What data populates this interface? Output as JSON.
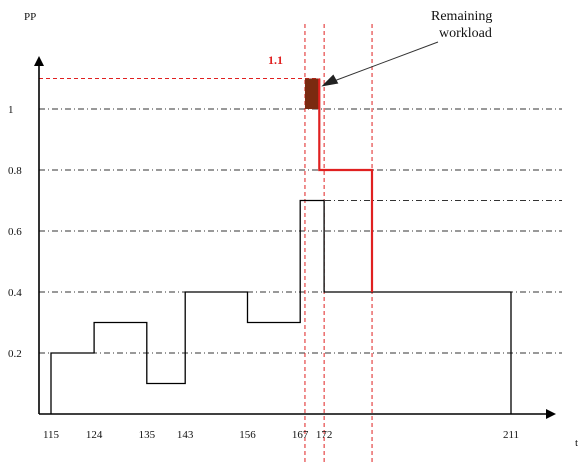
{
  "chart_data": {
    "type": "line",
    "ylabel": "PP",
    "xlabel": "t",
    "ylim": [
      0,
      1.2
    ],
    "y_ticks": [
      {
        "value": 0.2,
        "label": "0.2"
      },
      {
        "value": 0.4,
        "label": "0.4"
      },
      {
        "value": 0.6,
        "label": "0.6"
      },
      {
        "value": 0.8,
        "label": "0.8"
      },
      {
        "value": 1.0,
        "label": "1"
      }
    ],
    "x_ticks": [
      {
        "value": 115,
        "label": "115"
      },
      {
        "value": 124,
        "label": "124"
      },
      {
        "value": 135,
        "label": "135"
      },
      {
        "value": 143,
        "label": "143"
      },
      {
        "value": 156,
        "label": "156"
      },
      {
        "value": 167,
        "label": "167"
      },
      {
        "value": 172,
        "label": "172"
      },
      {
        "value": 211,
        "label": "211"
      }
    ],
    "y_gridlines": [
      0.2,
      0.4,
      0.6,
      0.7,
      0.8,
      1.0
    ],
    "series": [
      {
        "color": "#000000",
        "step_points": [
          [
            115,
            0.0
          ],
          [
            115,
            0.2
          ],
          [
            124,
            0.2
          ],
          [
            124,
            0.3
          ],
          [
            135,
            0.3
          ],
          [
            135,
            0.1
          ],
          [
            143,
            0.1
          ],
          [
            143,
            0.4
          ],
          [
            156,
            0.4
          ],
          [
            156,
            0.3
          ],
          [
            167,
            0.3
          ],
          [
            167,
            0.7
          ],
          [
            172,
            0.7
          ],
          [
            172,
            0.4
          ],
          [
            211,
            0.4
          ],
          [
            211,
            0.0
          ]
        ]
      },
      {
        "color": "#e02020",
        "step_points": [
          [
            171,
            1.1
          ],
          [
            171,
            0.8
          ],
          [
            182,
            0.8
          ],
          [
            182,
            0.4
          ]
        ]
      }
    ],
    "reference_lines": {
      "horizontal": {
        "value": 1.1,
        "label": "1.1",
        "x_from": 115,
        "x_to": 171,
        "color": "#e02020"
      },
      "vertical": [
        {
          "value": 168,
          "color": "#e02020"
        },
        {
          "value": 172,
          "color": "#e02020"
        },
        {
          "value": 182,
          "color": "#e02020"
        }
      ]
    },
    "highlight_region": {
      "x": [
        168,
        171
      ],
      "y": [
        1.0,
        1.1
      ],
      "color": "#7a2a10"
    },
    "annotation": {
      "text_line1": "Remaining",
      "text_line2": "workload",
      "points_to": [
        171,
        1.1
      ]
    }
  }
}
